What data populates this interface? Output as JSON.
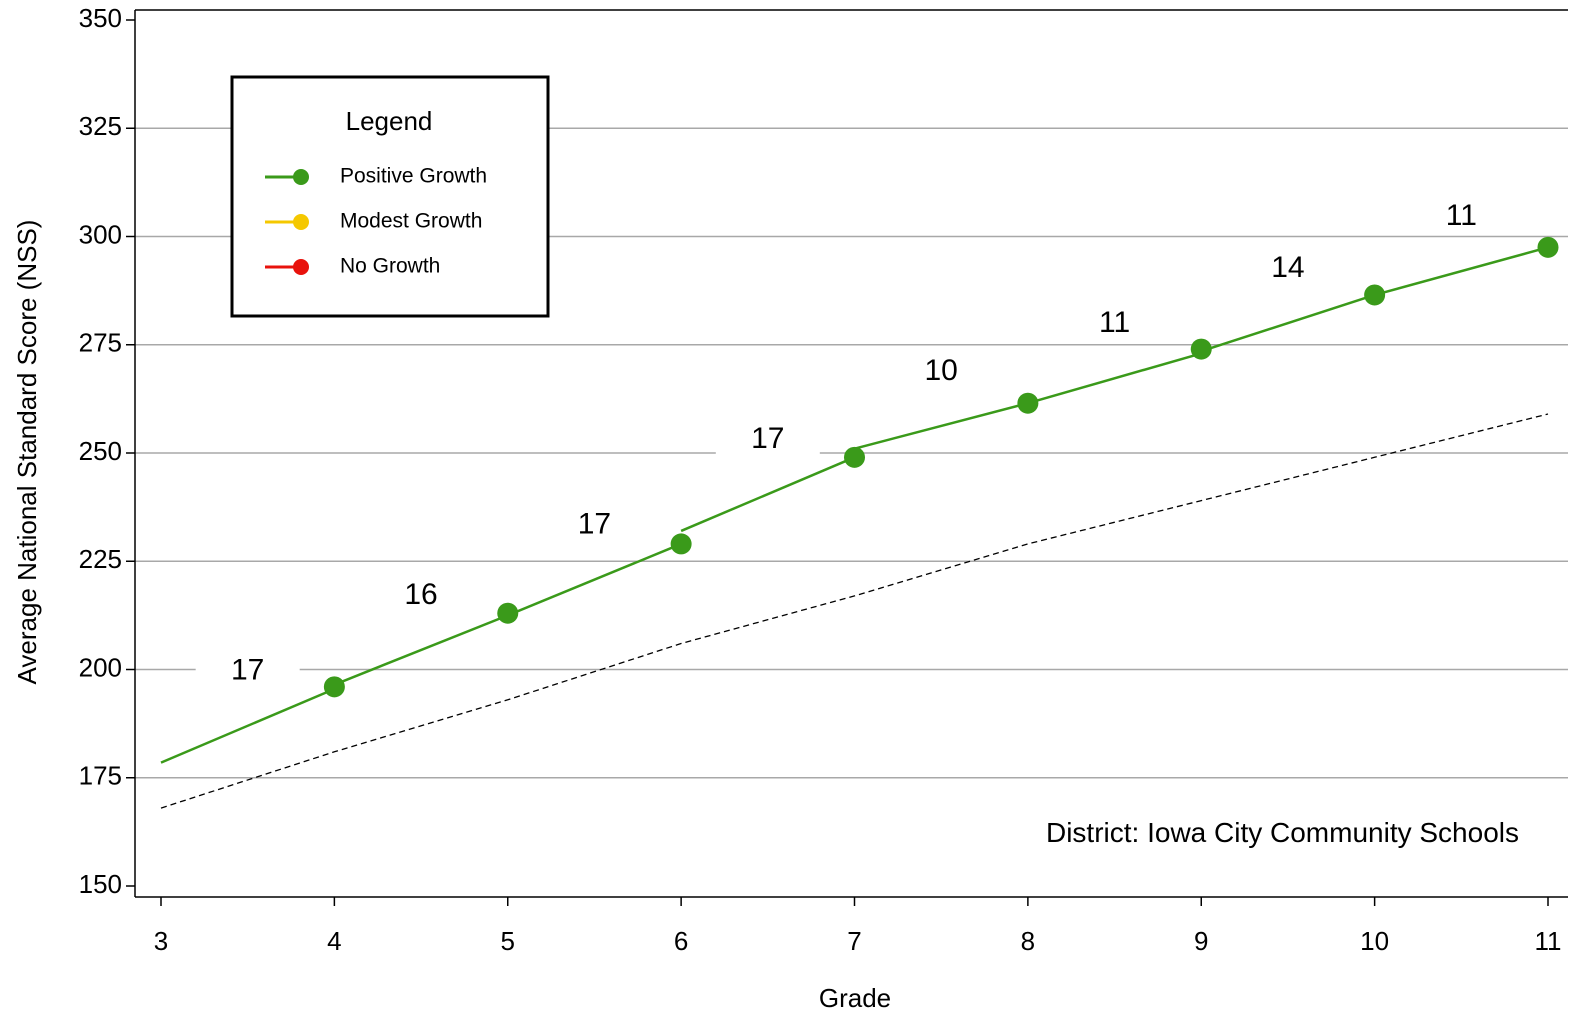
{
  "chart_data": {
    "type": "line",
    "title": "",
    "xlabel": "Grade",
    "ylabel": "Average National Standard Score (NSS)",
    "xlim": [
      3,
      11
    ],
    "ylim": [
      150,
      350
    ],
    "x_ticks": [
      3,
      4,
      5,
      6,
      7,
      8,
      9,
      10,
      11
    ],
    "y_ticks": [
      150,
      175,
      200,
      225,
      250,
      275,
      300,
      325,
      350
    ],
    "grid": {
      "horizontal": true,
      "vertical": false
    },
    "annotation": "District: Iowa City Community Schools",
    "legend": {
      "title": "Legend",
      "placement": "top-left",
      "items": [
        {
          "label": "Positive Growth",
          "color": "#3a9a1a"
        },
        {
          "label": "Modest Growth",
          "color": "#f5c800"
        },
        {
          "label": "No Growth",
          "color": "#e8120c"
        }
      ]
    },
    "growth_segments": [
      {
        "from_grade": 3,
        "to_grade": 4,
        "start": 178.5,
        "end": 195.5,
        "growth": 17,
        "category": "Positive Growth"
      },
      {
        "from_grade": 4,
        "to_grade": 5,
        "start": 196.5,
        "end": 212.5,
        "growth": 16,
        "category": "Positive Growth"
      },
      {
        "from_grade": 5,
        "to_grade": 6,
        "start": 212.5,
        "end": 229,
        "growth": 17,
        "category": "Positive Growth"
      },
      {
        "from_grade": 6,
        "to_grade": 7,
        "start": 232,
        "end": 249,
        "growth": 17,
        "category": "Positive Growth"
      },
      {
        "from_grade": 7,
        "to_grade": 8,
        "start": 251,
        "end": 261.5,
        "growth": 10,
        "category": "Positive Growth"
      },
      {
        "from_grade": 8,
        "to_grade": 9,
        "start": 261.5,
        "end": 273,
        "growth": 11,
        "category": "Positive Growth"
      },
      {
        "from_grade": 9,
        "to_grade": 10,
        "start": 273.5,
        "end": 286.5,
        "growth": 14,
        "category": "Positive Growth"
      },
      {
        "from_grade": 10,
        "to_grade": 11,
        "start": 286.5,
        "end": 297.5,
        "growth": 11,
        "category": "Positive Growth"
      }
    ],
    "points": [
      {
        "x": 4,
        "y": 196
      },
      {
        "x": 5,
        "y": 213
      },
      {
        "x": 6,
        "y": 229
      },
      {
        "x": 7,
        "y": 249
      },
      {
        "x": 8,
        "y": 261.5
      },
      {
        "x": 9,
        "y": 274
      },
      {
        "x": 10,
        "y": 286.5
      },
      {
        "x": 11,
        "y": 297.5
      }
    ],
    "reference_line": {
      "style": "dashed",
      "color": "#000000",
      "x": [
        3,
        4,
        5,
        6,
        7,
        8,
        9,
        10,
        11
      ],
      "y": [
        168,
        181,
        193,
        206,
        217,
        229,
        239,
        249,
        259
      ]
    }
  }
}
